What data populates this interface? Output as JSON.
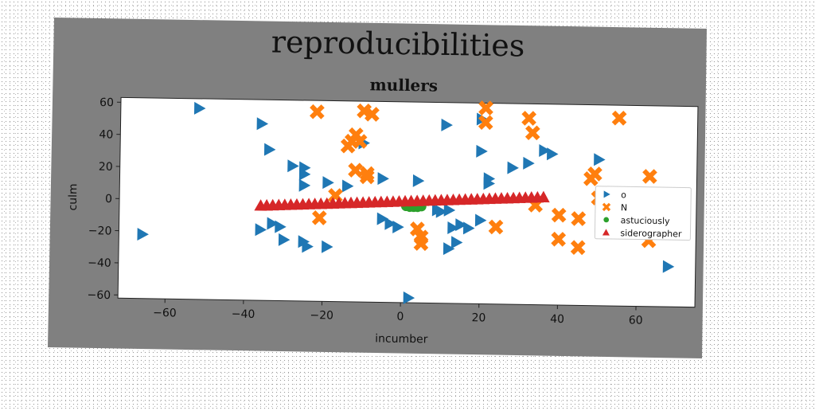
{
  "figure": {
    "title": "reproducibilities"
  },
  "chart_data": {
    "type": "scatter",
    "title": "mullers",
    "xlabel": "incumber",
    "ylabel": "culm",
    "xlim": [
      -72,
      75
    ],
    "ylim": [
      -62,
      63
    ],
    "x_ticks": [
      -60,
      -40,
      -20,
      0,
      20,
      40,
      60
    ],
    "y_ticks": [
      -60,
      -40,
      -20,
      0,
      20,
      40,
      60
    ],
    "x_tick_labels": [
      "−60",
      "−40",
      "−20",
      "0",
      "20",
      "40",
      "60"
    ],
    "y_tick_labels": [
      "−60",
      "−40",
      "−20",
      "0",
      "20",
      "40",
      "60"
    ],
    "grid": false,
    "legend_position": "right",
    "series": [
      {
        "name": "o",
        "marker": "triangle-right",
        "color": "#1f77b4",
        "x": [
          -52,
          -36,
          -34,
          -28,
          -25,
          -25,
          -25,
          -19,
          -14,
          -10,
          -5,
          4,
          11,
          20,
          22,
          20,
          22,
          28,
          32,
          36,
          38,
          50,
          -66,
          -36,
          -33,
          -31,
          -30,
          -25,
          -24,
          -19,
          -5,
          -3,
          -1,
          9,
          10,
          12,
          13,
          15,
          17,
          20,
          12,
          14,
          68,
          2
        ],
        "y": [
          57,
          48,
          32,
          22,
          21,
          17,
          10,
          12,
          10,
          37,
          15,
          14,
          49,
          53,
          16,
          33,
          13,
          23,
          26,
          34,
          32,
          29,
          -22,
          -18,
          -14,
          -16,
          -24,
          -25,
          -28,
          -28,
          -10,
          -13,
          -15,
          -4,
          -5,
          -4,
          -15,
          -13,
          -15,
          -10,
          -28,
          -24,
          -37,
          -59
        ]
      },
      {
        "name": "N",
        "marker": "x",
        "color": "#ff7f0e",
        "x": [
          -22,
          -10,
          -8,
          -13,
          -12,
          -11,
          -14,
          -12,
          -9,
          -9,
          -21,
          -17,
          21,
          21,
          32,
          33,
          55,
          4,
          5,
          5,
          24,
          34,
          40,
          45,
          40,
          45,
          49,
          48,
          50,
          63,
          63,
          55
        ],
        "y": [
          56,
          57,
          55,
          38,
          42,
          38,
          35,
          20,
          18,
          16,
          -10,
          4,
          60,
          51,
          54,
          45,
          55,
          -16,
          -21,
          -25,
          -14,
          0,
          -6,
          -8,
          -21,
          -26,
          20,
          17,
          5,
          19,
          -21,
          -8
        ]
      },
      {
        "name": "astuciously",
        "marker": "circle",
        "color": "#2ca02c",
        "x": [
          1,
          2,
          3,
          4,
          5
        ],
        "y": [
          -2,
          -2.5,
          -2.5,
          -2.5,
          -2
        ]
      },
      {
        "name": "siderographer",
        "marker": "triangle-up",
        "color": "#d62728",
        "line": {
          "x_from": -36,
          "x_to": 36,
          "y_from": -3,
          "y_to": 5,
          "count": 48
        }
      }
    ]
  }
}
